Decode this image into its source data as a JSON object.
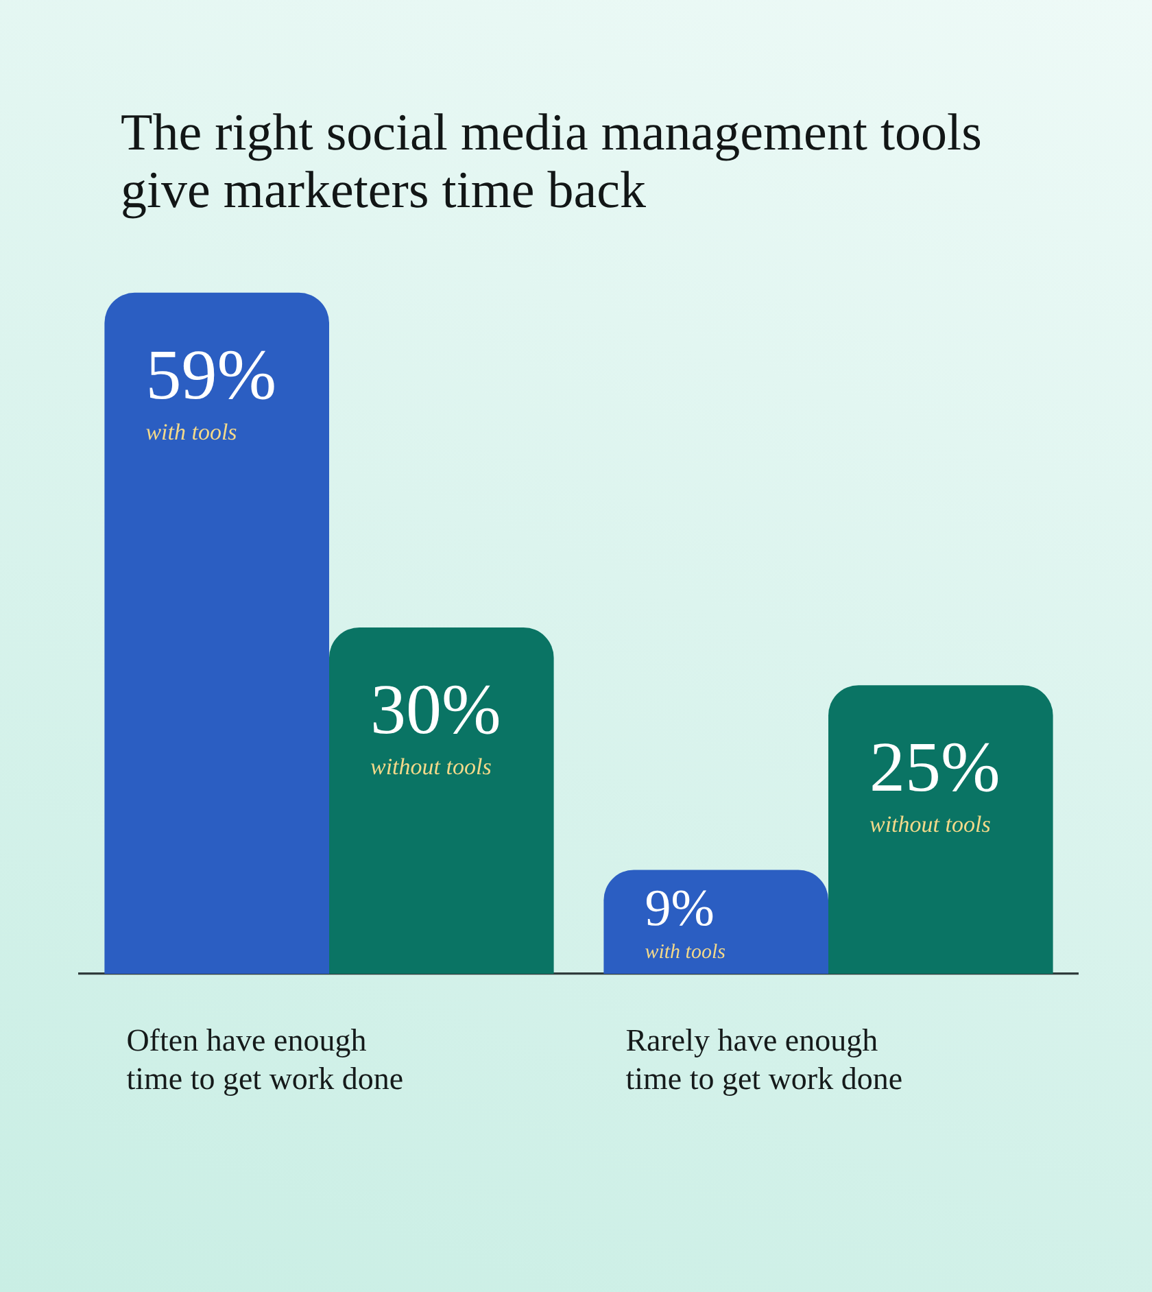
{
  "chart_data": {
    "type": "bar",
    "title": "The right social media management tools give marketers time back",
    "categories": [
      "Often have enough time to get work done",
      "Rarely have enough time to get work done"
    ],
    "series": [
      {
        "name": "with tools",
        "color": "#2b5ec2",
        "values": [
          59,
          9
        ],
        "value_labels": [
          "59%",
          "9%"
        ]
      },
      {
        "name": "without tools",
        "color": "#0a7464",
        "values": [
          30,
          25
        ],
        "value_labels": [
          "30%",
          "25%"
        ]
      }
    ]
  }
}
